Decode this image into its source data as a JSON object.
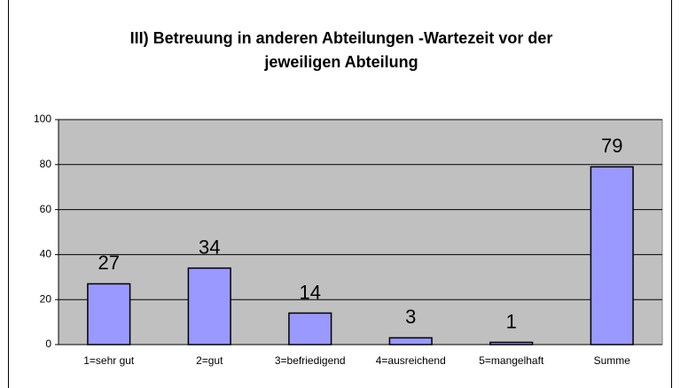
{
  "chart_data": {
    "type": "bar",
    "title": "III) Betreuung in anderen Abteilungen -Wartezeit vor der jeweiligen Abteilung",
    "categories": [
      "1=sehr gut",
      "2=gut",
      "3=befriedigend",
      "4=ausreichend",
      "5=mangelhaft",
      "Summe"
    ],
    "values": [
      27,
      34,
      14,
      3,
      1,
      79
    ],
    "color": "#9999ff",
    "ylim": [
      0,
      100
    ],
    "yticks": [
      0,
      20,
      40,
      60,
      80,
      100
    ],
    "grid": true
  }
}
